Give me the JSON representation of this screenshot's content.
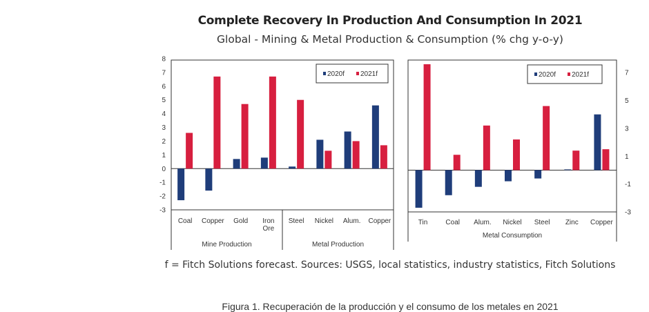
{
  "chart_data": [
    {
      "type": "bar",
      "title": "Complete Recovery In Production And Consumption In 2021",
      "subtitle": "Global - Mining & Metal Production & Consumption (% chg y-o-y)",
      "categories": [
        "Coal",
        "Copper",
        "Gold",
        "Iron Ore",
        "Steel",
        "Nickel",
        "Alum.",
        "Copper"
      ],
      "groups": [
        {
          "label": "Mine Production",
          "count": 4
        },
        {
          "label": "Metal Production",
          "count": 4
        }
      ],
      "series": [
        {
          "name": "2020f",
          "color": "#1f3d7a",
          "values": [
            -2.3,
            -1.6,
            0.7,
            0.8,
            0.15,
            2.1,
            2.7,
            4.6
          ]
        },
        {
          "name": "2021f",
          "color": "#d71f3f",
          "values": [
            2.6,
            6.7,
            4.7,
            6.7,
            5.0,
            1.3,
            2.0,
            1.7
          ]
        }
      ],
      "ylim": [
        -3,
        8
      ],
      "yticks": [
        8,
        7,
        6,
        5,
        4,
        3,
        2,
        1,
        0,
        -1,
        -2,
        -3
      ],
      "yaxis": "left",
      "legend": "top-right",
      "grid": false
    },
    {
      "type": "bar",
      "categories": [
        "Tin",
        "Coal",
        "Alum.",
        "Nickel",
        "Steel",
        "Zinc",
        "Copper"
      ],
      "groups": [
        {
          "label": "Metal Consumption",
          "count": 7
        }
      ],
      "series": [
        {
          "name": "2020f",
          "color": "#1f3d7a",
          "values": [
            -2.7,
            -1.8,
            -1.2,
            -0.8,
            -0.6,
            0.05,
            4.0
          ]
        },
        {
          "name": "2021f",
          "color": "#d71f3f",
          "values": [
            7.6,
            1.1,
            3.2,
            2.2,
            4.6,
            1.4,
            1.5
          ]
        }
      ],
      "ylim": [
        -3,
        8
      ],
      "yticks": [
        7,
        5,
        3,
        1,
        -1,
        -3
      ],
      "yaxis": "right",
      "legend": "top-right",
      "grid": false
    }
  ],
  "footnote": "f = Fitch Solutions forecast. Sources: USGS, local statistics, industry statistics, Fitch Solutions",
  "caption": "Figura 1. Recuperación de la producción y el consumo de los metales en 2021"
}
